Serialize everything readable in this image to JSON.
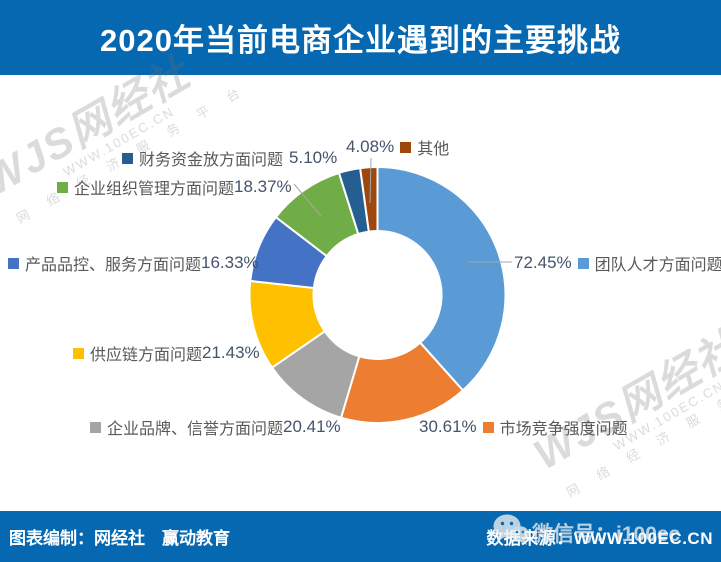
{
  "header": {
    "title": "2020年当前电商企业遇到的主要挑战"
  },
  "footer": {
    "credit": "图表编制：网经社　赢动教育",
    "source": "数据来源：WWW.100EC.CN",
    "wechat_id": "微信号：i100ec"
  },
  "watermark": {
    "brand": "WJS网经社",
    "site": "WWW.100EC.CN",
    "tagline": "网 络 经 济 服 务 平 台"
  },
  "chart_data": {
    "type": "pie",
    "subtype": "donut",
    "title": "2020年当前电商企业遇到的主要挑战",
    "start_angle_deg": 0,
    "inner_radius_ratio": 0.5,
    "legend_position": "callout-labels",
    "slices": [
      {
        "label": "团队人才方面问题",
        "value": 72.45,
        "pct": "72.45%",
        "color": "#5B9BD5"
      },
      {
        "label": "市场竞争强度问题",
        "value": 30.61,
        "pct": "30.61%",
        "color": "#ED7D31"
      },
      {
        "label": "企业品牌、信誉方面问题",
        "value": 20.41,
        "pct": "20.41%",
        "color": "#A5A5A5"
      },
      {
        "label": "供应链方面问题",
        "value": 21.43,
        "pct": "21.43%",
        "color": "#FFC000"
      },
      {
        "label": "产品品控、服务方面问题",
        "value": 16.33,
        "pct": "16.33%",
        "color": "#4472C4"
      },
      {
        "label": "企业组织管理方面问题",
        "value": 18.37,
        "pct": "18.37%",
        "color": "#70AD47"
      },
      {
        "label": "财务资金放方面问题",
        "value": 5.1,
        "pct": "5.10%",
        "color": "#255E91"
      },
      {
        "label": "其他",
        "value": 4.08,
        "pct": "4.08%",
        "color": "#9E480E"
      }
    ],
    "colors": {
      "header_bar": "#0768B2",
      "footer_bar": "#0768B2",
      "leader_line": "#A6A6A6"
    }
  }
}
